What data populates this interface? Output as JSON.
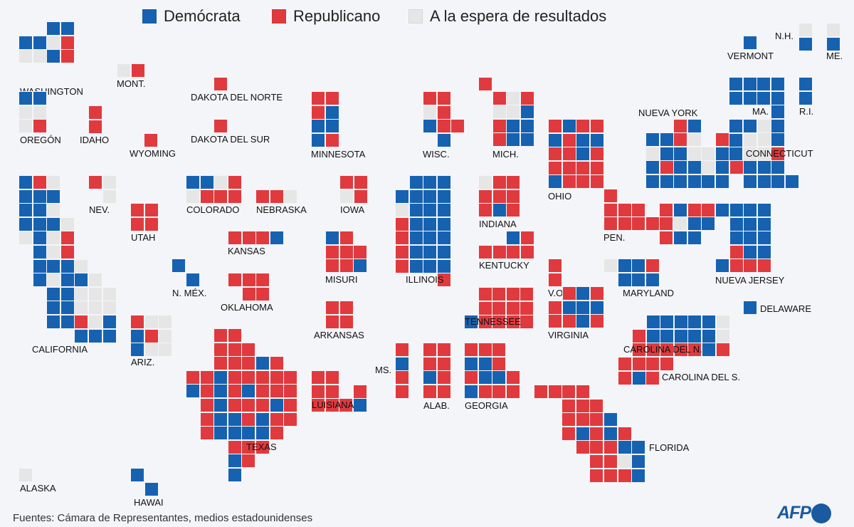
{
  "legend": {
    "democrat": "Demócrata",
    "republican": "Republicano",
    "pending": "A la espera de resultados"
  },
  "colors": {
    "D": "#1662b0",
    "R": "#e03a3e",
    "P": "#e6e6e6"
  },
  "states": [
    {
      "id": "WA",
      "name": "WASHINGTON",
      "cells": [
        "..DD",
        "DDPR",
        "PPDR"
      ]
    },
    {
      "id": "OR",
      "name": "OREGÓN",
      "cells": [
        "DD",
        "PP",
        "PR"
      ]
    },
    {
      "id": "ID",
      "name": "IDAHO",
      "cells": [
        "R",
        "R"
      ]
    },
    {
      "id": "MT",
      "name": "MONT.",
      "cells": [
        "PR"
      ]
    },
    {
      "id": "WY",
      "name": "WYOMING",
      "cells": [
        "R"
      ]
    },
    {
      "id": "ND",
      "name": "DAKOTA DEL NORTE",
      "cells": [
        "R"
      ]
    },
    {
      "id": "SD",
      "name": "DAKOTA DEL SUR",
      "cells": [
        "R"
      ]
    },
    {
      "id": "MN",
      "name": "MINNESOTA",
      "cells": [
        "RR",
        "RD",
        "DD",
        "DR"
      ]
    },
    {
      "id": "WI",
      "name": "WISC.",
      "cells": [
        "RR.",
        "PR.",
        "DRR",
        ".D."
      ]
    },
    {
      "id": "MI",
      "name": "MICH.",
      "cells": [
        "R...",
        ".RPR",
        ".PPD",
        ".RDD",
        ".RDD"
      ]
    },
    {
      "id": "CA",
      "name": "CALIFORNIA",
      "cells": [
        "DRP....",
        "DDD....",
        "DDP....",
        "DDDP...",
        "PDPR...",
        ".DPR...",
        ".DDDP..",
        ".DPDDP.",
        "..DDPPP",
        "..DDPPP",
        "..DDRPD",
        "....DDD"
      ]
    },
    {
      "id": "NV",
      "name": "NEV.",
      "cells": [
        "RP",
        ".P"
      ]
    },
    {
      "id": "UT",
      "name": "UTAH",
      "cells": [
        "RR",
        "RR"
      ]
    },
    {
      "id": "CO",
      "name": "COLORADO",
      "cells": [
        "DDPR",
        "PRRR"
      ]
    },
    {
      "id": "NE",
      "name": "NEBRASKA",
      "cells": [
        "RRP"
      ]
    },
    {
      "id": "IA",
      "name": "IOWA",
      "cells": [
        "RR",
        "PR"
      ]
    },
    {
      "id": "IL",
      "name": "ILLINOIS",
      "cells": [
        ".DDD",
        "DDDD",
        "PDDD",
        "RDDD",
        "RDDD",
        "RDDD",
        "RDDD",
        "...R"
      ]
    },
    {
      "id": "IN",
      "name": "INDIANA",
      "cells": [
        "PRR",
        "RRR",
        "RDR"
      ]
    },
    {
      "id": "OH",
      "name": "OHIO",
      "cells": [
        "RDRR",
        "DRDD",
        "RRDR",
        "RRRR",
        "DRRR"
      ]
    },
    {
      "id": "KS",
      "name": "KANSAS",
      "cells": [
        "RRRD"
      ]
    },
    {
      "id": "MO",
      "name": "MISURI",
      "cells": [
        "DR.",
        "RRR",
        "RRD"
      ]
    },
    {
      "id": "KY",
      "name": "KENTUCKY",
      "cells": [
        "..DR",
        "RRRR"
      ]
    },
    {
      "id": "NM",
      "name": "N. MÉX.",
      "cells": [
        "D.",
        ".D"
      ]
    },
    {
      "id": "OK",
      "name": "OKLAHOMA",
      "cells": [
        "RRR",
        ".RR"
      ]
    },
    {
      "id": "AR",
      "name": "ARKANSAS",
      "cells": [
        "RR",
        "RR"
      ]
    },
    {
      "id": "TN",
      "name": "TENNESSEE",
      "cells": [
        ".RRRR",
        ".RRRR",
        "DRRRR"
      ]
    },
    {
      "id": "AZ",
      "name": "ARIZ.",
      "cells": [
        "RPP",
        "DRP",
        "DPP"
      ]
    },
    {
      "id": "TX",
      "name": "TEXAS",
      "cells": [
        "..RR....",
        "..RRR...",
        "..RRRDR.",
        "RRDRRRRR",
        "DRDRDRRR",
        ".RDRRRDR",
        ".RDDRDRR",
        ".RDDDDR.",
        "...RRR..",
        "...DR...",
        "...D...."
      ]
    },
    {
      "id": "LA",
      "name": "LUISIANA",
      "cells": [
        "RR..",
        "RR.R",
        "RRRD"
      ]
    },
    {
      "id": "MS",
      "name": "MS.",
      "cells": [
        "R",
        "D",
        "R",
        "R"
      ]
    },
    {
      "id": "AL",
      "name": "ALAB.",
      "cells": [
        "RR",
        "RR",
        "DR",
        "RR"
      ]
    },
    {
      "id": "GA",
      "name": "GEORGIA",
      "cells": [
        "RRR.",
        "DDR.",
        "RDDR",
        "DRRR"
      ]
    },
    {
      "id": "FL",
      "name": "FLORIDA",
      "cells": [
        "RRRR....",
        "..RRR...",
        "..RRRD..",
        "..RDRDR.",
        "...RRRDD",
        "....RRPD",
        "....RRRD"
      ]
    },
    {
      "id": "NY",
      "name": "NUEVA YORK",
      "cells": [
        ".........R",
        "..RD..D.PD",
        "DDRP.RD.PD",
        "PDDPPDDPPR",
        "DRDDPDRDDD",
        "DDDDDD.DDDD"
      ]
    },
    {
      "id": "PA",
      "name": "PEN.",
      "cells": [
        "R......",
        "RRR.RDRR",
        "RRRRRPDD",
        "....RDD"
      ]
    },
    {
      "id": "NJ",
      "name": "NUEVA JERSEY",
      "cells": [
        "DDDD",
        ".DDD",
        ".DDD",
        ".RDD",
        "DRRR"
      ]
    },
    {
      "id": "WV",
      "name": "V.O.",
      "cells": [
        "R",
        "R"
      ]
    },
    {
      "id": "MD",
      "name": "MARYLAND",
      "cells": [
        "PDDR",
        ".DDD"
      ]
    },
    {
      "id": "VA",
      "name": "VIRGINIA",
      "cells": [
        ".RDR",
        "RDDD",
        "RRDR"
      ]
    },
    {
      "id": "DE",
      "name": "DELAWARE",
      "cells": [
        "D"
      ]
    },
    {
      "id": "NC",
      "name": "CAROLINA DEL N.",
      "cells": [
        ".DDDDDP",
        "RDDDDDP",
        "RRRRRDR"
      ]
    },
    {
      "id": "SC",
      "name": "CAROLINA DEL S.",
      "cells": [
        "RRRR",
        "RDR."
      ]
    },
    {
      "id": "VT",
      "name": "VERMONT",
      "cells": [
        "D"
      ]
    },
    {
      "id": "NH",
      "name": "N.H.",
      "cells": [
        "P",
        "D"
      ]
    },
    {
      "id": "ME",
      "name": "ME.",
      "cells": [
        "P",
        "D"
      ]
    },
    {
      "id": "MA",
      "name": "MA.",
      "cells": [
        "DDDD",
        "DDDD",
        "...D"
      ]
    },
    {
      "id": "RI",
      "name": "R.I.",
      "cells": [
        "D",
        "D"
      ]
    },
    {
      "id": "CT",
      "name": "CONNECTICUT",
      "cells": [
        "DD",
        "DP",
        "D."
      ]
    },
    {
      "id": "AK",
      "name": "ALASKA",
      "cells": [
        "P"
      ]
    },
    {
      "id": "HI",
      "name": "HAWAI",
      "cells": [
        "D.",
        ".D"
      ]
    }
  ],
  "source": "Fuentes: Cámara de Representantes, medios estadounidenses",
  "logo": "AFP"
}
